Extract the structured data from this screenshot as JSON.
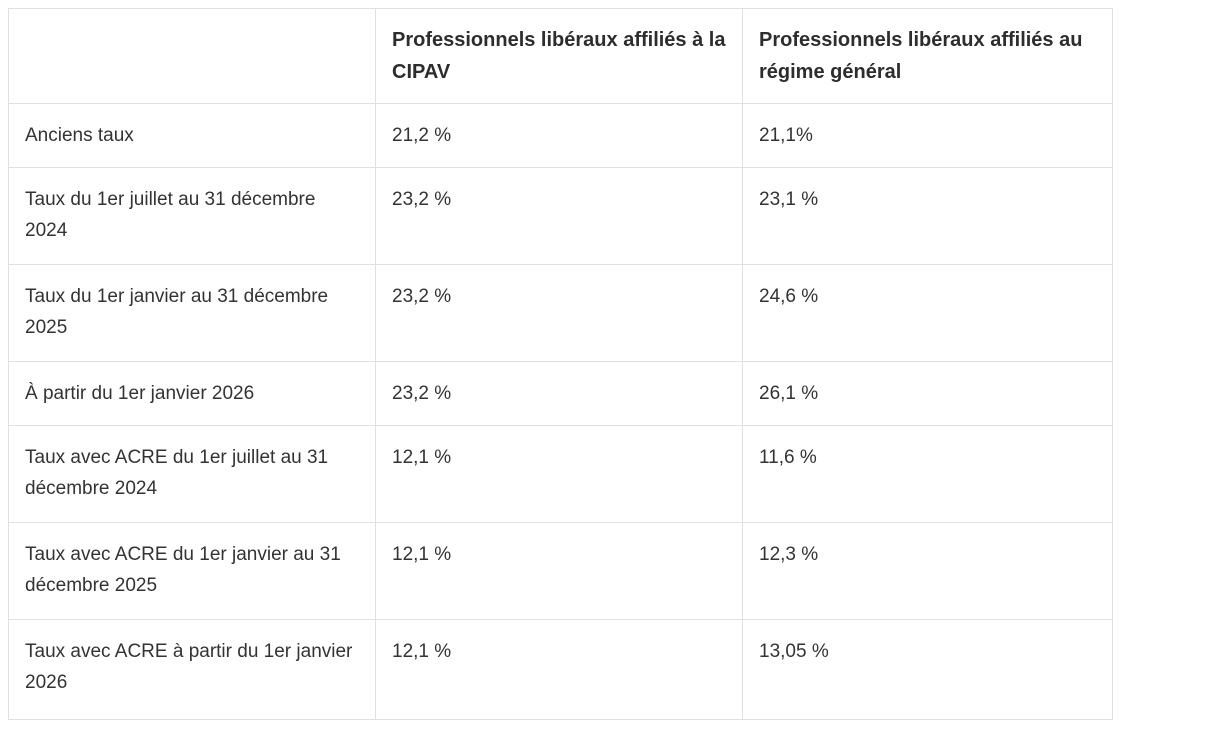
{
  "table": {
    "headers": [
      "",
      "Professionnels libéraux affiliés à la CIPAV",
      "Professionnels libéraux affiliés au régime général"
    ],
    "rows": [
      {
        "label": "Anciens taux",
        "cipav": "21,2 %",
        "general": "21,1%"
      },
      {
        "label": "Taux du 1er juillet au 31 décembre 2024",
        "cipav": "23,2 %",
        "general": "23,1 %"
      },
      {
        "label": "Taux du 1er janvier au 31 décembre 2025",
        "cipav": "23,2 %",
        "general": "24,6 %"
      },
      {
        "label": "À partir du 1er janvier 2026",
        "cipav": "23,2 %",
        "general": "26,1 %"
      },
      {
        "label": "Taux avec ACRE du 1er juillet au 31 décembre 2024",
        "cipav": "12,1 %",
        "general": "11,6 %"
      },
      {
        "label": "Taux avec ACRE du 1er janvier au 31 décembre 2025",
        "cipav": "12,1 %",
        "general": "12,3 %"
      },
      {
        "label": "Taux avec ACRE à partir du 1er janvier 2026",
        "cipav": "12,1 %",
        "general": "13,05 %"
      }
    ]
  }
}
